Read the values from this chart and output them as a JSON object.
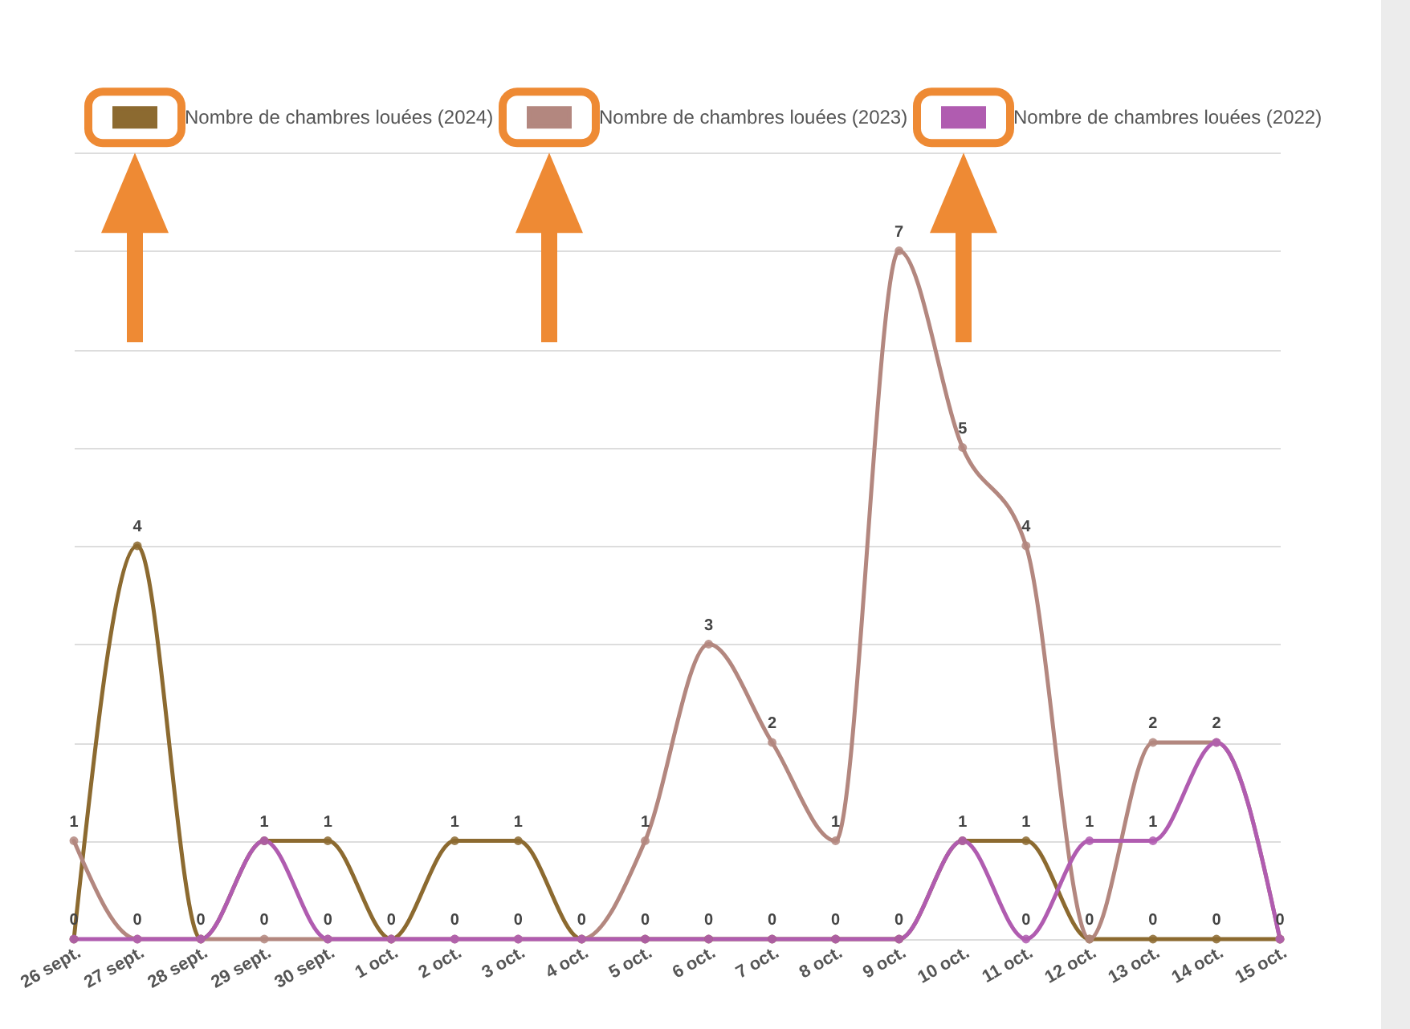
{
  "chart_data": {
    "type": "line",
    "categories": [
      "26 sept.",
      "27 sept.",
      "28 sept.",
      "29 sept.",
      "30 sept.",
      "1 oct.",
      "2 oct.",
      "3 oct.",
      "4 oct.",
      "5 oct.",
      "6 oct.",
      "7 oct.",
      "8 oct.",
      "9 oct.",
      "10 oct.",
      "11 oct.",
      "12 oct.",
      "13 oct.",
      "14 oct.",
      "15 oct."
    ],
    "series": [
      {
        "name": "Nombre de chambres louées (2024)",
        "color": "#8c6a30",
        "values": [
          0,
          4,
          0,
          1,
          1,
          0,
          1,
          1,
          0,
          0,
          0,
          0,
          0,
          0,
          1,
          1,
          0,
          0,
          0,
          0
        ],
        "value_labels": [
          "0",
          "4",
          "0",
          "1",
          "1",
          "0",
          "1",
          "1",
          "0",
          "0",
          "0",
          "0",
          "0",
          "0",
          "1",
          "1",
          "0",
          "0",
          "0",
          "0"
        ]
      },
      {
        "name": "Nombre de chambres louées (2023)",
        "color": "#b3877f",
        "values": [
          1,
          0,
          0,
          0,
          0,
          0,
          0,
          0,
          0,
          1,
          3,
          2,
          1,
          7,
          5,
          4,
          0,
          2,
          2,
          0
        ],
        "value_labels": [
          "1",
          "0",
          null,
          "0",
          "0",
          null,
          "0",
          "0",
          null,
          "1",
          "3",
          "2",
          "1",
          "7",
          "5",
          "4",
          null,
          "2",
          "2",
          null
        ]
      },
      {
        "name": "Nombre de chambres louées (2022)",
        "color": "#b05cb0",
        "values": [
          0,
          0,
          0,
          1,
          0,
          0,
          0,
          0,
          0,
          0,
          0,
          0,
          0,
          0,
          1,
          0,
          1,
          1,
          2,
          0
        ],
        "value_labels": [
          null,
          null,
          null,
          null,
          null,
          null,
          null,
          null,
          null,
          null,
          null,
          null,
          null,
          null,
          null,
          "0",
          "1",
          "1",
          null,
          null
        ]
      }
    ],
    "ylim": [
      0,
      8
    ],
    "yticks": [
      {
        "value": 0,
        "label": null
      },
      {
        "value": 1,
        "label": null
      },
      {
        "value": 2,
        "label": null
      },
      {
        "value": 3,
        "label": null
      },
      {
        "value": 4,
        "label": null
      },
      {
        "value": 5,
        "label": null
      },
      {
        "value": 6,
        "label": null
      },
      {
        "value": 7,
        "label": null
      },
      {
        "value": 8,
        "label": null
      }
    ],
    "tick_labels": "x",
    "grid": "y",
    "legend": "top",
    "marker": "circle",
    "line_style": "solid"
  }
}
